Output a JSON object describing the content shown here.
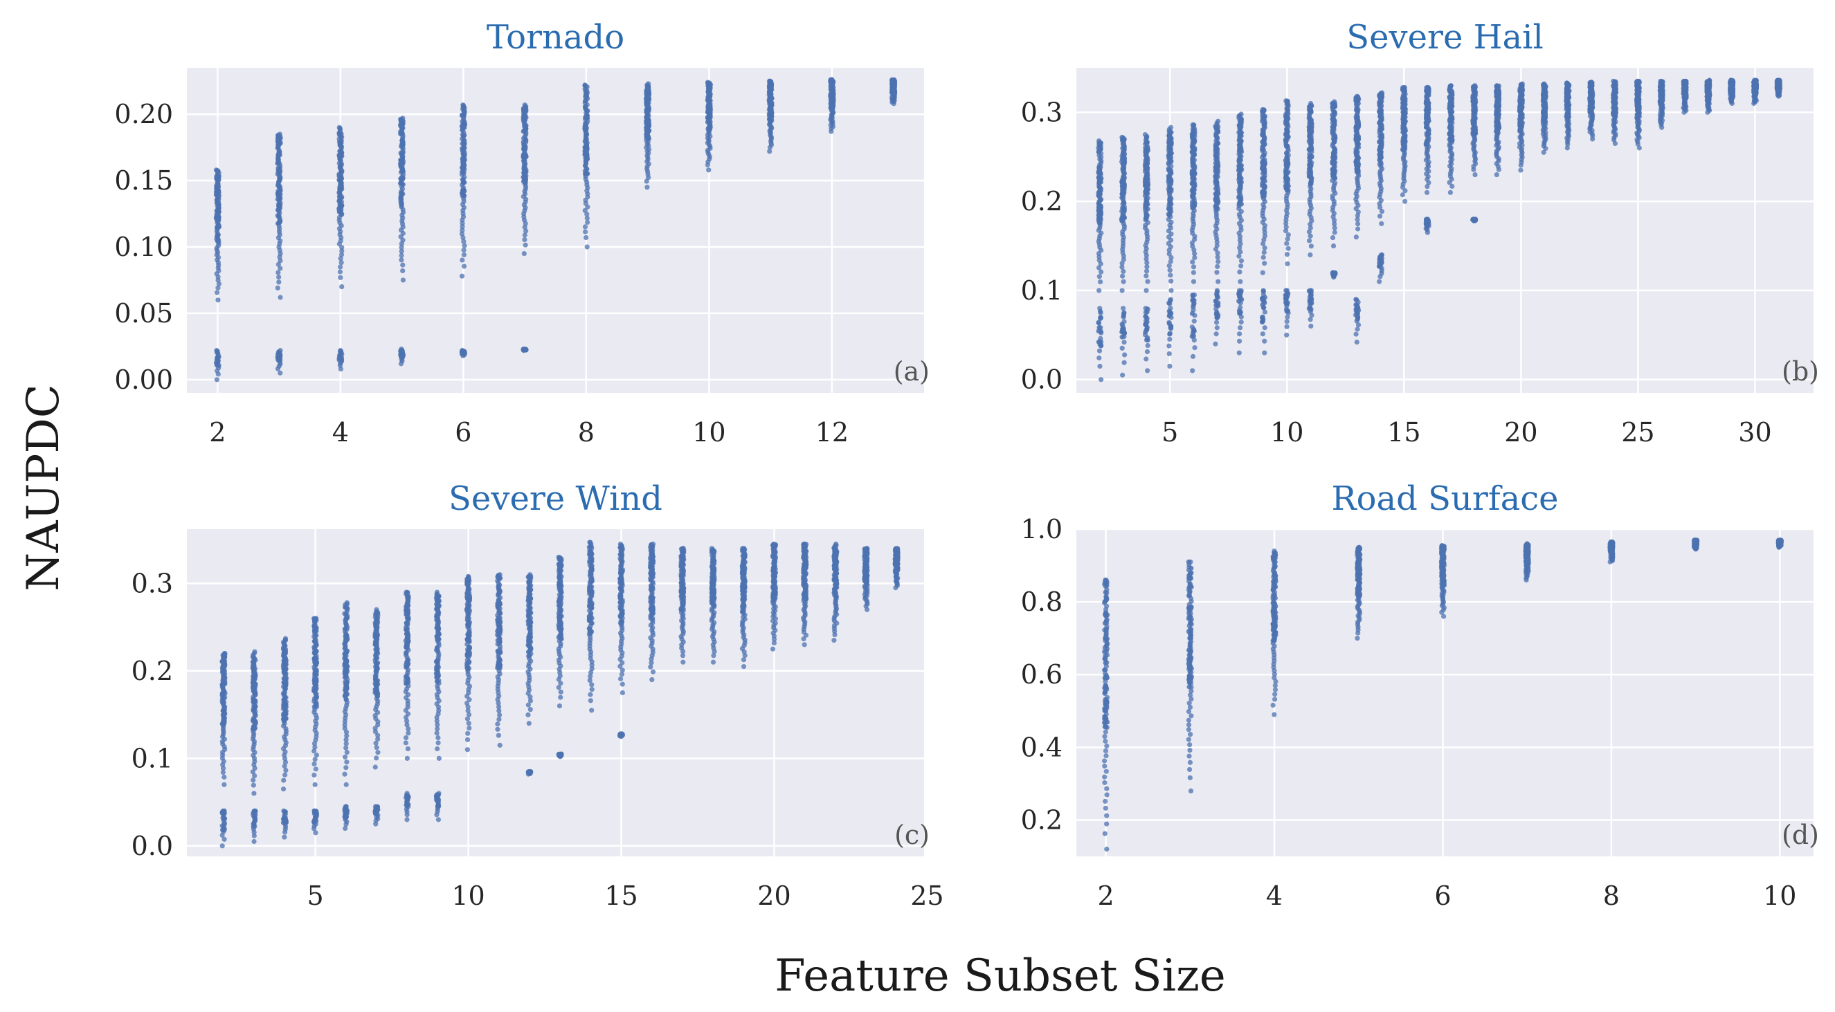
{
  "figure": {
    "supylabel": "NAUPDC",
    "supxlabel": "Feature Subset Size",
    "colors": {
      "points": "#4c72b0",
      "title": "#2b6cb0",
      "panel_bg": "#eaeaf2",
      "grid": "#ffffff"
    }
  },
  "chart_data": [
    {
      "type": "scatter",
      "title": "Tornado",
      "letter": "(a)",
      "xlim": [
        1.5,
        13.5
      ],
      "ylim": [
        -0.01,
        0.235
      ],
      "xticks": [
        2,
        4,
        6,
        8,
        10,
        12
      ],
      "yticks": [
        0.0,
        0.05,
        0.1,
        0.15,
        0.2
      ],
      "ytick_labels": [
        "0.00",
        "0.05",
        "0.10",
        "0.15",
        "0.20"
      ],
      "grid": true,
      "columns": [
        {
          "x": 2,
          "hi": [
            0.06,
            0.158
          ],
          "lo": [
            0.0,
            0.022
          ]
        },
        {
          "x": 3,
          "hi": [
            0.062,
            0.185
          ],
          "lo": [
            0.005,
            0.022
          ]
        },
        {
          "x": 4,
          "hi": [
            0.07,
            0.19
          ],
          "lo": [
            0.008,
            0.022
          ]
        },
        {
          "x": 5,
          "hi": [
            0.075,
            0.197
          ],
          "lo": [
            0.012,
            0.023
          ]
        },
        {
          "x": 6,
          "hi": [
            0.078,
            0.207
          ],
          "lo": [
            0.018,
            0.022
          ]
        },
        {
          "x": 7,
          "hi": [
            0.095,
            0.207
          ],
          "lo": [
            0.022,
            0.023
          ]
        },
        {
          "x": 8,
          "hi": [
            0.1,
            0.222
          ],
          "lo": []
        },
        {
          "x": 9,
          "hi": [
            0.145,
            0.223
          ],
          "lo": []
        },
        {
          "x": 10,
          "hi": [
            0.158,
            0.224
          ],
          "lo": []
        },
        {
          "x": 11,
          "hi": [
            0.172,
            0.225
          ],
          "lo": []
        },
        {
          "x": 12,
          "hi": [
            0.187,
            0.226
          ],
          "lo": []
        },
        {
          "x": 13,
          "hi": [
            0.208,
            0.226
          ],
          "lo": []
        }
      ]
    },
    {
      "type": "scatter",
      "title": "Severe Hail",
      "letter": "(b)",
      "xlim": [
        1,
        32.5
      ],
      "ylim": [
        -0.015,
        0.35
      ],
      "xticks": [
        5,
        10,
        15,
        20,
        25,
        30
      ],
      "yticks": [
        0.0,
        0.1,
        0.2,
        0.3
      ],
      "ytick_labels": [
        "0.0",
        "0.1",
        "0.2",
        "0.3"
      ],
      "grid": true,
      "columns": [
        {
          "x": 2,
          "hi": [
            0.1,
            0.268
          ],
          "lo": [
            0.0,
            0.08
          ]
        },
        {
          "x": 3,
          "hi": [
            0.1,
            0.272
          ],
          "lo": [
            0.005,
            0.08
          ]
        },
        {
          "x": 4,
          "hi": [
            0.1,
            0.275
          ],
          "lo": [
            0.01,
            0.08
          ]
        },
        {
          "x": 5,
          "hi": [
            0.1,
            0.283
          ],
          "lo": [
            0.015,
            0.09
          ]
        },
        {
          "x": 6,
          "hi": [
            0.11,
            0.286
          ],
          "lo": [
            0.01,
            0.095
          ]
        },
        {
          "x": 7,
          "hi": [
            0.11,
            0.29
          ],
          "lo": [
            0.04,
            0.1
          ]
        },
        {
          "x": 8,
          "hi": [
            0.11,
            0.298
          ],
          "lo": [
            0.03,
            0.1
          ]
        },
        {
          "x": 9,
          "hi": [
            0.12,
            0.303
          ],
          "lo": [
            0.03,
            0.1
          ]
        },
        {
          "x": 10,
          "hi": [
            0.13,
            0.313
          ],
          "lo": [
            0.05,
            0.1
          ]
        },
        {
          "x": 11,
          "hi": [
            0.14,
            0.31
          ],
          "lo": [
            0.06,
            0.1
          ]
        },
        {
          "x": 12,
          "hi": [
            0.15,
            0.312
          ],
          "lo": [
            0.115,
            0.12
          ]
        },
        {
          "x": 13,
          "hi": [
            0.16,
            0.318
          ],
          "lo": [
            0.042,
            0.09
          ]
        },
        {
          "x": 14,
          "hi": [
            0.175,
            0.322
          ],
          "lo": [
            0.11,
            0.14
          ]
        },
        {
          "x": 15,
          "hi": [
            0.2,
            0.328
          ],
          "lo": []
        },
        {
          "x": 16,
          "hi": [
            0.21,
            0.328
          ],
          "lo": [
            0.165,
            0.18
          ]
        },
        {
          "x": 17,
          "hi": [
            0.21,
            0.33
          ],
          "lo": []
        },
        {
          "x": 18,
          "hi": [
            0.23,
            0.33
          ],
          "lo": [
            0.178,
            0.18
          ]
        },
        {
          "x": 19,
          "hi": [
            0.23,
            0.33
          ],
          "lo": []
        },
        {
          "x": 20,
          "hi": [
            0.235,
            0.332
          ],
          "lo": []
        },
        {
          "x": 21,
          "hi": [
            0.255,
            0.332
          ],
          "lo": []
        },
        {
          "x": 22,
          "hi": [
            0.26,
            0.333
          ],
          "lo": []
        },
        {
          "x": 23,
          "hi": [
            0.27,
            0.334
          ],
          "lo": []
        },
        {
          "x": 24,
          "hi": [
            0.265,
            0.335
          ],
          "lo": []
        },
        {
          "x": 25,
          "hi": [
            0.26,
            0.335
          ],
          "lo": []
        },
        {
          "x": 26,
          "hi": [
            0.283,
            0.335
          ],
          "lo": []
        },
        {
          "x": 27,
          "hi": [
            0.3,
            0.335
          ],
          "lo": []
        },
        {
          "x": 28,
          "hi": [
            0.3,
            0.336
          ],
          "lo": []
        },
        {
          "x": 29,
          "hi": [
            0.31,
            0.336
          ],
          "lo": []
        },
        {
          "x": 30,
          "hi": [
            0.31,
            0.336
          ],
          "lo": []
        },
        {
          "x": 31,
          "hi": [
            0.318,
            0.336
          ],
          "lo": []
        }
      ]
    },
    {
      "type": "scatter",
      "title": "Severe Wind",
      "letter": "(c)",
      "xlim": [
        0.8,
        24.9
      ],
      "ylim": [
        -0.012,
        0.362
      ],
      "xticks": [
        5,
        10,
        15,
        20,
        25
      ],
      "yticks": [
        0.0,
        0.1,
        0.2,
        0.3
      ],
      "ytick_labels": [
        "0.0",
        "0.1",
        "0.2",
        "0.3"
      ],
      "grid": true,
      "columns": [
        {
          "x": 2,
          "hi": [
            0.07,
            0.22
          ],
          "lo": [
            0.0,
            0.04
          ]
        },
        {
          "x": 3,
          "hi": [
            0.06,
            0.222
          ],
          "lo": [
            0.005,
            0.04
          ]
        },
        {
          "x": 4,
          "hi": [
            0.065,
            0.237
          ],
          "lo": [
            0.01,
            0.04
          ]
        },
        {
          "x": 5,
          "hi": [
            0.07,
            0.26
          ],
          "lo": [
            0.015,
            0.04
          ]
        },
        {
          "x": 6,
          "hi": [
            0.07,
            0.278
          ],
          "lo": [
            0.02,
            0.045
          ]
        },
        {
          "x": 7,
          "hi": [
            0.09,
            0.27
          ],
          "lo": [
            0.025,
            0.045
          ]
        },
        {
          "x": 8,
          "hi": [
            0.1,
            0.29
          ],
          "lo": [
            0.03,
            0.06
          ]
        },
        {
          "x": 9,
          "hi": [
            0.1,
            0.29
          ],
          "lo": [
            0.03,
            0.06
          ]
        },
        {
          "x": 10,
          "hi": [
            0.11,
            0.308
          ],
          "lo": []
        },
        {
          "x": 11,
          "hi": [
            0.115,
            0.31
          ],
          "lo": []
        },
        {
          "x": 12,
          "hi": [
            0.14,
            0.31
          ],
          "lo": [
            0.082,
            0.085
          ]
        },
        {
          "x": 13,
          "hi": [
            0.16,
            0.33
          ],
          "lo": [
            0.102,
            0.105
          ]
        },
        {
          "x": 14,
          "hi": [
            0.155,
            0.347
          ],
          "lo": []
        },
        {
          "x": 15,
          "hi": [
            0.175,
            0.345
          ],
          "lo": [
            0.125,
            0.128
          ]
        },
        {
          "x": 16,
          "hi": [
            0.19,
            0.345
          ],
          "lo": []
        },
        {
          "x": 17,
          "hi": [
            0.21,
            0.34
          ],
          "lo": []
        },
        {
          "x": 18,
          "hi": [
            0.21,
            0.34
          ],
          "lo": []
        },
        {
          "x": 19,
          "hi": [
            0.205,
            0.34
          ],
          "lo": []
        },
        {
          "x": 20,
          "hi": [
            0.225,
            0.345
          ],
          "lo": []
        },
        {
          "x": 21,
          "hi": [
            0.23,
            0.345
          ],
          "lo": []
        },
        {
          "x": 22,
          "hi": [
            0.235,
            0.345
          ],
          "lo": []
        },
        {
          "x": 23,
          "hi": [
            0.27,
            0.34
          ],
          "lo": []
        },
        {
          "x": 24,
          "hi": [
            0.295,
            0.34
          ],
          "lo": []
        }
      ]
    },
    {
      "type": "scatter",
      "title": "Road Surface",
      "letter": "(d)",
      "xlim": [
        1.65,
        10.4
      ],
      "ylim": [
        0.1,
        1.0
      ],
      "xticks": [
        2,
        4,
        6,
        8,
        10
      ],
      "yticks": [
        0.2,
        0.4,
        0.6,
        0.8,
        1.0
      ],
      "ytick_labels": [
        "0.2",
        "0.4",
        "0.6",
        "0.8",
        "1.0"
      ],
      "grid": true,
      "columns": [
        {
          "x": 2,
          "hi": [
            0.12,
            0.86
          ],
          "lo": []
        },
        {
          "x": 3,
          "hi": [
            0.28,
            0.91
          ],
          "lo": []
        },
        {
          "x": 4,
          "hi": [
            0.49,
            0.94
          ],
          "lo": []
        },
        {
          "x": 5,
          "hi": [
            0.7,
            0.95
          ],
          "lo": []
        },
        {
          "x": 6,
          "hi": [
            0.76,
            0.955
          ],
          "lo": []
        },
        {
          "x": 7,
          "hi": [
            0.86,
            0.96
          ],
          "lo": []
        },
        {
          "x": 8,
          "hi": [
            0.91,
            0.965
          ],
          "lo": []
        },
        {
          "x": 9,
          "hi": [
            0.945,
            0.97
          ],
          "lo": []
        },
        {
          "x": 10,
          "hi": [
            0.95,
            0.97
          ],
          "lo": []
        }
      ]
    }
  ]
}
